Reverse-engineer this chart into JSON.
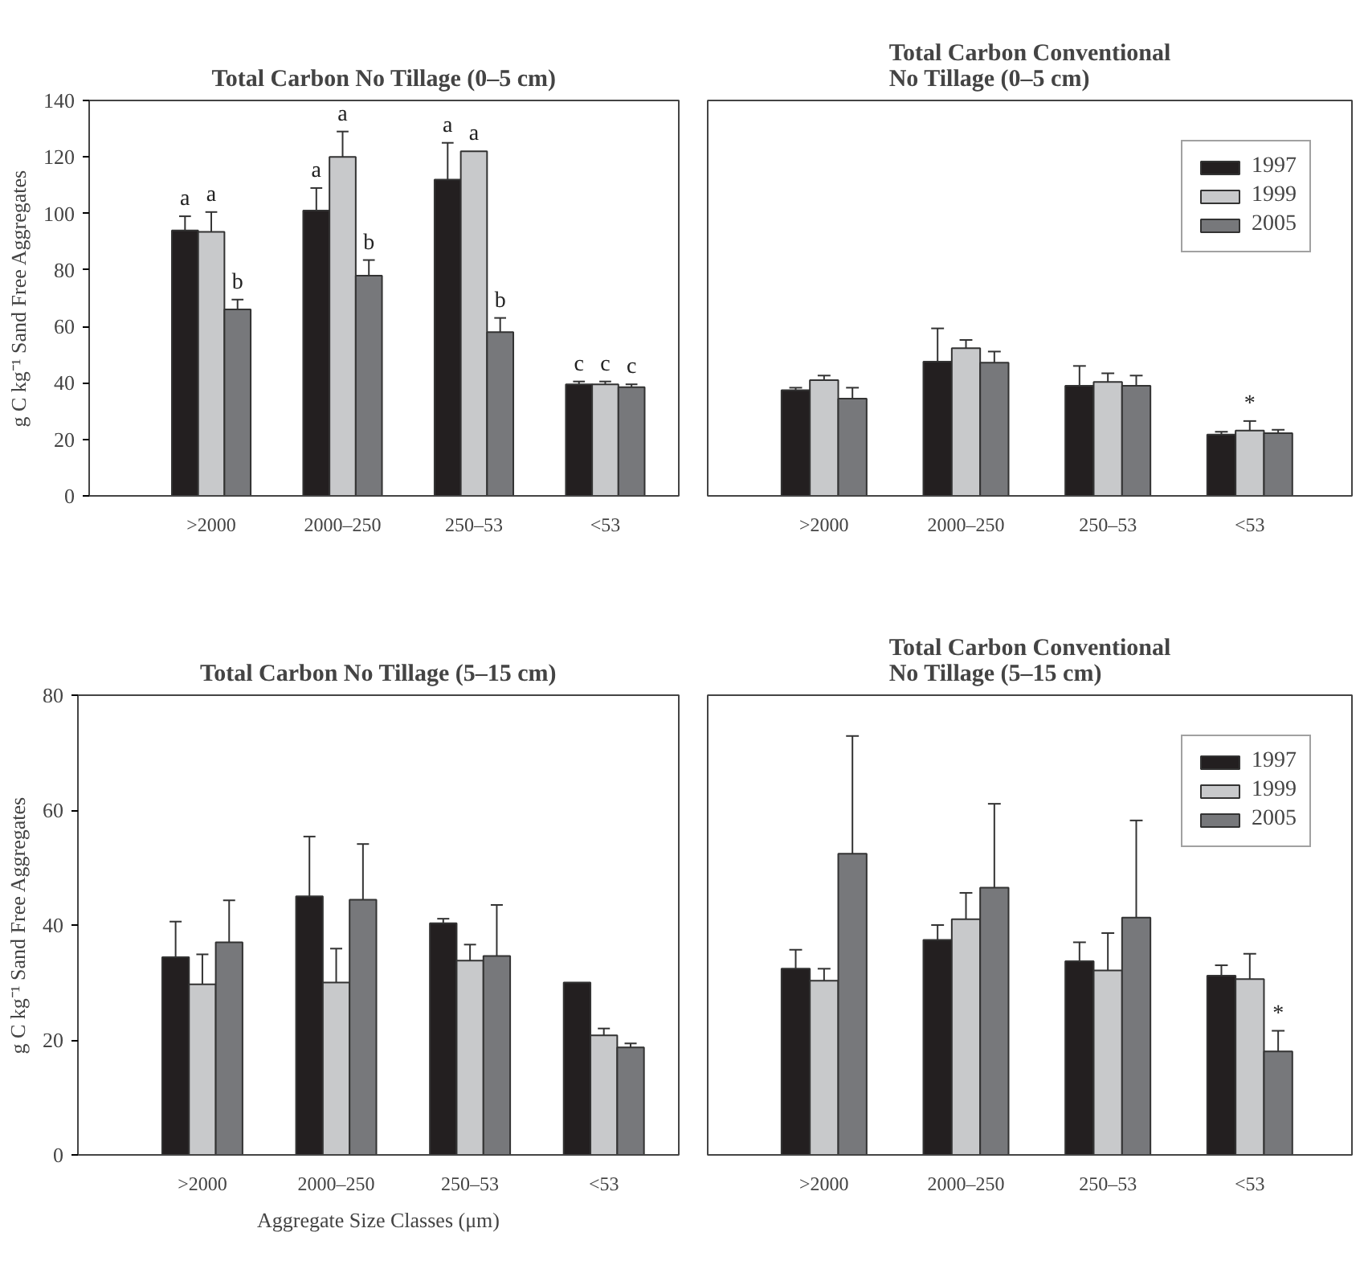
{
  "chart_data": [
    {
      "type": "bar",
      "title": "Total Carbon No Tillage (0–5 cm)",
      "ylabel": "g C kg⁻¹ Sand Free Aggregates",
      "categories": [
        ">2000",
        "2000–250",
        "250–53",
        "<53"
      ],
      "ylim": [
        0,
        140
      ],
      "yticks": [
        0,
        20,
        40,
        60,
        80,
        100,
        120,
        140
      ],
      "grid": false,
      "legend": false,
      "series": [
        {
          "color": "#231f20",
          "values": [
            94,
            101,
            112,
            39.5
          ],
          "errors": [
            [
              94,
              99
            ],
            [
              101,
              109
            ],
            [
              112,
              125
            ],
            [
              39.5,
              40.5
            ]
          ],
          "value_labels": [
            "a",
            "a",
            "a",
            "c"
          ]
        },
        {
          "color": "#c8c9cb",
          "values": [
            93.5,
            120,
            122,
            39.5
          ],
          "errors": [
            [
              93.5,
              100.5
            ],
            [
              120,
              129
            ],
            null,
            [
              39.5,
              40.5
            ]
          ],
          "value_labels": [
            "a",
            "a",
            "a",
            "c"
          ]
        },
        {
          "color": "#77787b",
          "values": [
            66,
            78,
            58,
            38.5
          ],
          "errors": [
            [
              66,
              69.5
            ],
            [
              78,
              83.5
            ],
            [
              58,
              63
            ],
            [
              38.5,
              39.5
            ]
          ],
          "value_labels": [
            "b",
            "b",
            "b",
            "c"
          ]
        }
      ]
    },
    {
      "type": "bar",
      "title": "Total Carbon Conventional\nNo Tillage (0–5 cm)",
      "categories": [
        ">2000",
        "2000–250",
        "250–53",
        "<53"
      ],
      "ylim": [
        0,
        140
      ],
      "yticks": [
        0,
        20,
        40,
        60,
        80,
        100,
        120,
        140
      ],
      "tick_labels": "x",
      "grid": false,
      "legend": "top right",
      "series": [
        {
          "name": "1997",
          "color": "#231f20",
          "values": [
            37.4,
            47.5,
            39,
            21.7
          ],
          "errors": [
            [
              37.4,
              38.3
            ],
            [
              47.5,
              59.3
            ],
            [
              39,
              46
            ],
            [
              21.7,
              22.7
            ]
          ]
        },
        {
          "name": "1999",
          "color": "#c8c9cb",
          "values": [
            41,
            52.3,
            40.3,
            23.1
          ],
          "errors": [
            [
              41,
              42.6
            ],
            [
              52.3,
              55.2
            ],
            [
              40.3,
              43.4
            ],
            [
              23.1,
              26.5
            ]
          ],
          "value_labels": [
            null,
            null,
            null,
            "*"
          ]
        },
        {
          "name": "2005",
          "color": "#77787b",
          "values": [
            34.4,
            47.2,
            39,
            22.2
          ],
          "errors": [
            [
              34.4,
              38.3
            ],
            [
              47.2,
              51.1
            ],
            [
              39,
              42.6
            ],
            [
              22.2,
              23.4
            ]
          ]
        }
      ]
    },
    {
      "type": "bar",
      "title": "Total Carbon No Tillage (5–15 cm)",
      "ylabel": "g C kg⁻¹ Sand Free Aggregates",
      "xlabel": "Aggregate Size Classes (μm)",
      "categories": [
        ">2000",
        "2000–250",
        "250–53",
        "<53"
      ],
      "ylim": [
        0,
        80
      ],
      "yticks": [
        0,
        20,
        40,
        60,
        80
      ],
      "grid": false,
      "legend": false,
      "series": [
        {
          "color": "#231f20",
          "values": [
            34.4,
            45,
            40.3,
            30
          ],
          "errors": [
            [
              34.4,
              40.6
            ],
            [
              45,
              55.4
            ],
            [
              40.3,
              41.1
            ],
            null
          ]
        },
        {
          "color": "#c8c9cb",
          "values": [
            29.7,
            30,
            33.8,
            20.8
          ],
          "errors": [
            [
              29.7,
              34.9
            ],
            [
              30,
              35.9
            ],
            [
              33.8,
              36.6
            ],
            [
              20.8,
              22
            ]
          ]
        },
        {
          "color": "#77787b",
          "values": [
            37,
            44.4,
            34.6,
            18.7
          ],
          "errors": [
            [
              37,
              44.3
            ],
            [
              44.4,
              54.1
            ],
            [
              34.6,
              43.5
            ],
            [
              18.7,
              19.4
            ]
          ]
        }
      ]
    },
    {
      "type": "bar",
      "title": "Total Carbon Conventional\nNo Tillage (5–15 cm)",
      "categories": [
        ">2000",
        "2000–250",
        "250–53",
        "<53"
      ],
      "ylim": [
        0,
        80
      ],
      "yticks": [
        0,
        20,
        40,
        60,
        80
      ],
      "tick_labels": "x",
      "grid": false,
      "legend": "top right",
      "series": [
        {
          "name": "1997",
          "color": "#231f20",
          "values": [
            32.4,
            37.4,
            33.7,
            31.2
          ],
          "errors": [
            [
              32.4,
              35.7
            ],
            [
              37.4,
              40
            ],
            [
              33.7,
              37
            ],
            [
              31.2,
              33
            ]
          ]
        },
        {
          "name": "1999",
          "color": "#c8c9cb",
          "values": [
            30.3,
            41,
            32.1,
            30.6
          ],
          "errors": [
            [
              30.3,
              32.4
            ],
            [
              41,
              45.6
            ],
            [
              32.1,
              38.6
            ],
            [
              30.6,
              35
            ]
          ]
        },
        {
          "name": "2005",
          "color": "#77787b",
          "values": [
            52.4,
            46.5,
            41.3,
            18
          ],
          "errors": [
            [
              52.4,
              72.9
            ],
            [
              46.5,
              61.1
            ],
            [
              41.3,
              58.2
            ],
            [
              18,
              21.6
            ]
          ],
          "value_labels": [
            null,
            null,
            null,
            "*"
          ]
        }
      ]
    }
  ]
}
